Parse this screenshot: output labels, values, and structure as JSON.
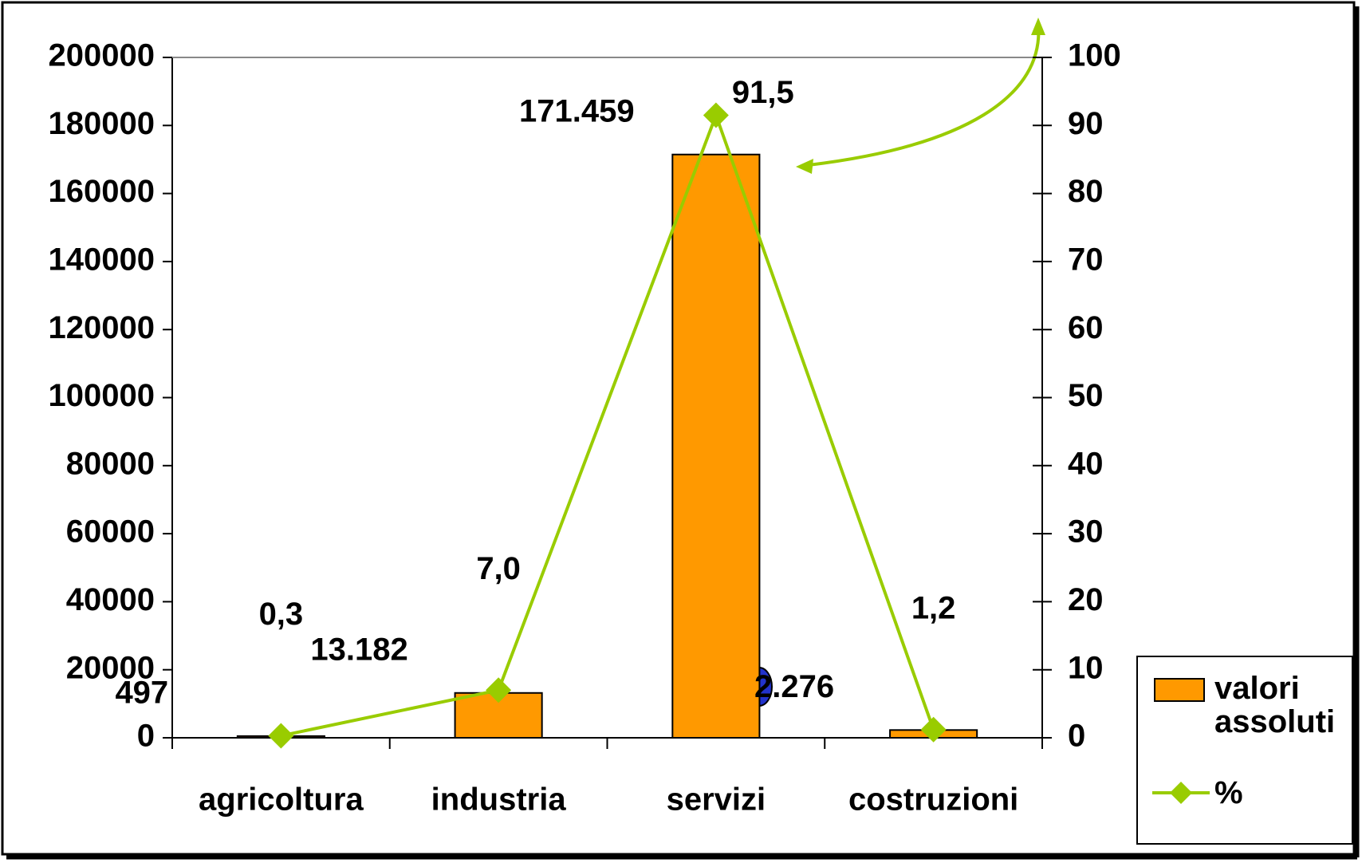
{
  "chart_data": {
    "type": "bar+line",
    "categories": [
      "agricoltura",
      "industria",
      "servizi",
      "costruzioni"
    ],
    "series": [
      {
        "name": "valori assoluti",
        "type": "bar",
        "color": "#ff9900",
        "values": [
          497,
          13182,
          171459,
          2276
        ],
        "value_labels": [
          "497",
          "13.182",
          "171.459",
          "2.276"
        ]
      },
      {
        "name": "%",
        "type": "line",
        "axis": "y2",
        "color": "#99cc00",
        "values": [
          0.3,
          7.0,
          91.5,
          1.2
        ],
        "value_labels": [
          "0,3",
          "7,0",
          "91,5",
          "1,2"
        ]
      }
    ],
    "ylim": [
      0,
      200000
    ],
    "yticks": [
      0,
      20000,
      40000,
      60000,
      80000,
      100000,
      120000,
      140000,
      160000,
      180000,
      200000
    ],
    "y2lim": [
      0,
      100
    ],
    "y2ticks": [
      0,
      10,
      20,
      30,
      40,
      50,
      60,
      70,
      80,
      90,
      100
    ],
    "legend": "right"
  }
}
